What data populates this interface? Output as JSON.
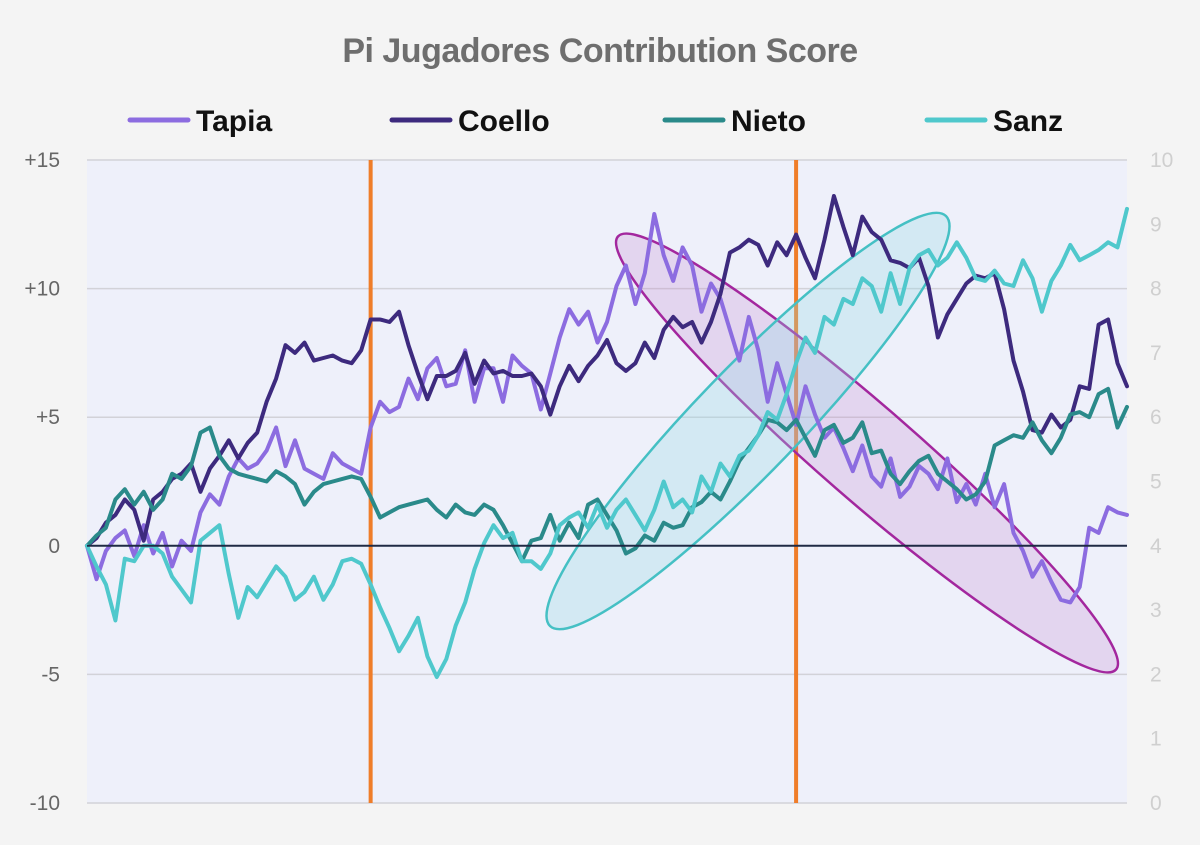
{
  "chart_data": {
    "type": "line",
    "title": "Pi Jugadores Contribution Score",
    "legend_position": "top",
    "grid": true,
    "y_left": {
      "lim": [
        -10,
        15
      ],
      "ticks": [
        "+15",
        "+10",
        "+5",
        "0",
        "-5",
        "-10"
      ],
      "tick_values": [
        15,
        10,
        5,
        0,
        -5,
        -10
      ]
    },
    "y_right": {
      "lim": [
        0,
        10
      ],
      "ticks": [
        "10",
        "9",
        "8",
        "7",
        "6",
        "5",
        "4",
        "3",
        "2",
        "1",
        "0"
      ],
      "tick_values": [
        10,
        9,
        8,
        7,
        6,
        5,
        4,
        3,
        2,
        1,
        0
      ]
    },
    "x_range": [
      0,
      110
    ],
    "vertical_markers": [
      {
        "x": 30,
        "color": "#ef7d29"
      },
      {
        "x": 75,
        "color": "#ef7d29"
      }
    ],
    "series": [
      {
        "name": "Tapia",
        "color": "#8c6ce0",
        "values": [
          0,
          -1.3,
          -0.2,
          0.3,
          0.6,
          -0.4,
          0.8,
          -0.3,
          0.5,
          -0.8,
          0.2,
          -0.2,
          1.3,
          2,
          1.6,
          2.7,
          3.4,
          3,
          3.2,
          3.7,
          4.6,
          3.1,
          4.1,
          3,
          2.8,
          2.6,
          3.6,
          3.2,
          3,
          2.8,
          4.6,
          5.6,
          5.2,
          5.4,
          6.5,
          5.7,
          6.9,
          7.3,
          6.2,
          6.3,
          7.6,
          5.6,
          6.9,
          6.9,
          5.6,
          7.4,
          7,
          6.7,
          5.3,
          6.7,
          8.1,
          9.2,
          8.6,
          9.1,
          7.9,
          8.7,
          10.1,
          10.9,
          9.4,
          10.6,
          12.9,
          11.3,
          10.3,
          11.6,
          10.9,
          9.1,
          10.2,
          9.6,
          8.4,
          7.2,
          8.9,
          7.6,
          5.6,
          7.1,
          5.9,
          4.7,
          6.2,
          5.1,
          4.2,
          4.6,
          3.8,
          2.9,
          3.9,
          2.7,
          2.3,
          3.4,
          1.9,
          2.3,
          3.1,
          2.8,
          2.2,
          3.4,
          1.7,
          2.4,
          1.6,
          2.8,
          1.5,
          2.4,
          0.5,
          -0.2,
          -1.2,
          -0.6,
          -1.4,
          -2.1,
          -2.2,
          -1.6,
          0.7,
          0.5,
          1.5,
          1.3,
          1.2
        ]
      },
      {
        "name": "Coello",
        "color": "#3d2a7e",
        "values": [
          0,
          0.3,
          0.9,
          1.2,
          1.8,
          1.4,
          0.2,
          1.8,
          2.1,
          2.6,
          2.8,
          3.2,
          2.1,
          3,
          3.5,
          4.1,
          3.4,
          4,
          4.4,
          5.6,
          6.5,
          7.8,
          7.5,
          7.9,
          7.2,
          7.3,
          7.4,
          7.2,
          7.1,
          7.6,
          8.8,
          8.8,
          8.7,
          9.1,
          7.8,
          6.7,
          5.7,
          6.6,
          6.6,
          6.8,
          7.5,
          6.3,
          7.2,
          6.7,
          6.8,
          6.6,
          6.6,
          6.7,
          6.2,
          5.1,
          6.2,
          7,
          6.4,
          7,
          7.4,
          8,
          7.1,
          6.8,
          7.1,
          7.9,
          7.3,
          8.4,
          8.9,
          8.5,
          8.7,
          7.9,
          8.7,
          9.8,
          11.4,
          11.6,
          11.9,
          11.7,
          10.9,
          11.8,
          11.3,
          12.1,
          11.2,
          10.4,
          11.9,
          13.6,
          12.4,
          11.3,
          12.8,
          12.2,
          11.9,
          11.1,
          11,
          10.8,
          11.2,
          10.1,
          8.1,
          9,
          9.6,
          10.2,
          10.5,
          10.4,
          10.6,
          9.2,
          7.2,
          6,
          4.5,
          4.4,
          5.1,
          4.6,
          4.9,
          6.2,
          6.1,
          8.6,
          8.8,
          7.1,
          6.2
        ]
      },
      {
        "name": "Nieto",
        "color": "#2a8a8a",
        "values": [
          0,
          0.4,
          0.7,
          1.8,
          2.2,
          1.6,
          2.1,
          1.4,
          1.8,
          2.8,
          2.6,
          3.1,
          4.4,
          4.6,
          3.5,
          3,
          2.8,
          2.7,
          2.6,
          2.5,
          2.9,
          2.7,
          2.4,
          1.6,
          2.1,
          2.4,
          2.5,
          2.6,
          2.7,
          2.6,
          1.9,
          1.1,
          1.3,
          1.5,
          1.6,
          1.7,
          1.8,
          1.4,
          1.1,
          1.6,
          1.3,
          1.2,
          1.6,
          1.4,
          0.8,
          0.1,
          -0.6,
          0.2,
          0.3,
          1.2,
          0.2,
          0.9,
          0.3,
          1.6,
          1.8,
          1.2,
          0.6,
          -0.3,
          -0.1,
          0.4,
          0.2,
          0.9,
          0.7,
          0.8,
          1.5,
          1.7,
          2.1,
          1.8,
          2.5,
          3.3,
          3.8,
          4.3,
          4.9,
          4.8,
          4.5,
          4.9,
          4.2,
          3.5,
          4.5,
          4.7,
          4,
          4.2,
          4.8,
          3.6,
          3.7,
          2.8,
          2.4,
          2.9,
          3.3,
          3.5,
          2.8,
          2.5,
          2.2,
          1.8,
          2,
          2.5,
          3.9,
          4.1,
          4.3,
          4.2,
          4.8,
          4.1,
          3.6,
          4.2,
          5.1,
          5.2,
          5,
          5.9,
          6.1,
          4.6,
          5.4
        ]
      },
      {
        "name": "Sanz",
        "color": "#4fc8cc",
        "values": [
          0,
          -0.8,
          -1.5,
          -2.9,
          -0.5,
          -0.6,
          0,
          0,
          -0.3,
          -1.2,
          -1.7,
          -2.2,
          0.2,
          0.5,
          0.8,
          -1.1,
          -2.8,
          -1.6,
          -2,
          -1.4,
          -0.8,
          -1.2,
          -2.1,
          -1.8,
          -1.2,
          -2.1,
          -1.5,
          -0.6,
          -0.5,
          -0.7,
          -1.5,
          -2.4,
          -3.2,
          -4.1,
          -3.5,
          -2.8,
          -4.3,
          -5.1,
          -4.4,
          -3.1,
          -2.2,
          -0.9,
          0.1,
          0.8,
          0.3,
          0.5,
          -0.6,
          -0.6,
          -0.9,
          -0.3,
          0.8,
          1.1,
          1.3,
          0.7,
          1.6,
          0.7,
          1.4,
          1.8,
          1.2,
          0.6,
          1.4,
          2.5,
          1.5,
          1.8,
          1.3,
          2.7,
          2.1,
          3.2,
          2.7,
          3.5,
          3.7,
          4.3,
          5.2,
          4.9,
          5.9,
          7.1,
          8.1,
          7.5,
          8.9,
          8.6,
          9.6,
          9.4,
          10.4,
          10.1,
          9.1,
          10.6,
          9.4,
          10.8,
          11.3,
          11.5,
          10.9,
          11.2,
          11.8,
          11.2,
          10.4,
          10.3,
          10.7,
          10.2,
          10.1,
          11.1,
          10.4,
          9.1,
          10.3,
          10.9,
          11.7,
          11.1,
          11.3,
          11.5,
          11.8,
          11.6,
          13.1
        ]
      }
    ]
  }
}
